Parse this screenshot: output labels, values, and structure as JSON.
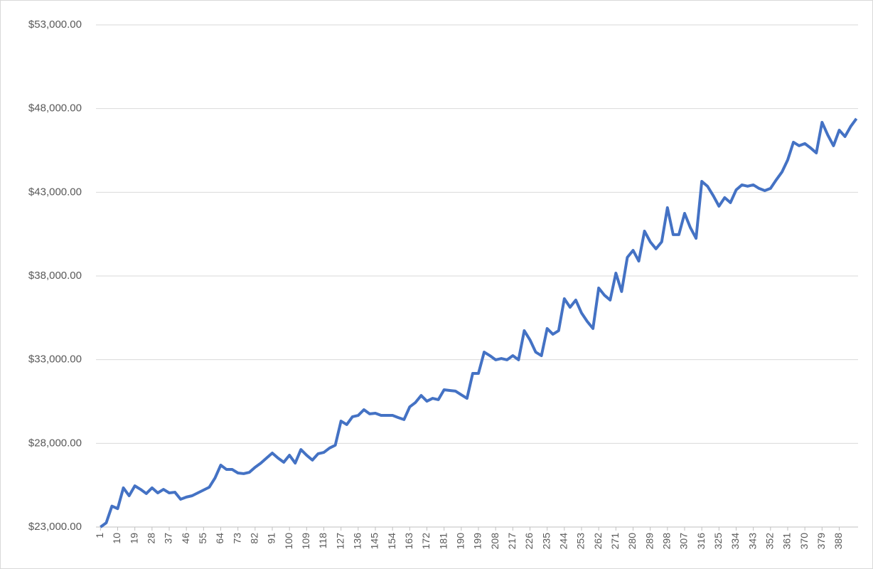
{
  "chart_data": {
    "type": "line",
    "x": [
      1,
      4,
      7,
      10,
      13,
      16,
      19,
      22,
      25,
      28,
      31,
      34,
      37,
      40,
      43,
      46,
      49,
      52,
      55,
      58,
      61,
      64,
      67,
      70,
      73,
      76,
      79,
      82,
      85,
      88,
      91,
      94,
      97,
      100,
      103,
      106,
      109,
      112,
      115,
      118,
      121,
      124,
      127,
      130,
      133,
      136,
      139,
      142,
      145,
      148,
      151,
      154,
      157,
      160,
      163,
      166,
      169,
      172,
      175,
      178,
      181,
      184,
      187,
      190,
      193,
      196,
      199,
      202,
      205,
      208,
      211,
      214,
      217,
      220,
      223,
      226,
      229,
      232,
      235,
      238,
      241,
      244,
      247,
      250,
      253,
      256,
      259,
      262,
      265,
      268,
      271,
      274,
      277,
      280,
      283,
      286,
      289,
      292,
      295,
      298,
      301,
      304,
      307,
      310,
      313,
      316,
      319,
      322,
      325,
      328,
      331,
      334,
      337,
      340,
      343,
      346,
      349,
      352,
      355,
      358,
      361,
      364,
      367,
      370,
      373,
      376,
      379,
      382,
      385,
      388,
      391,
      394,
      397
    ],
    "series": [
      {
        "color": "#4472c4",
        "values": [
          23000,
          23250,
          24250,
          24100,
          25340,
          24870,
          25460,
          25250,
          25000,
          25340,
          25040,
          25250,
          25040,
          25080,
          24660,
          24790,
          24870,
          25040,
          25210,
          25380,
          25930,
          26700,
          26440,
          26440,
          26230,
          26190,
          26270,
          26570,
          26820,
          27120,
          27420,
          27120,
          26870,
          27290,
          26820,
          27630,
          27290,
          27000,
          27380,
          27460,
          27720,
          27890,
          29330,
          29120,
          29590,
          29670,
          30010,
          29760,
          29800,
          29670,
          29670,
          29670,
          29540,
          29420,
          30180,
          30440,
          30860,
          30520,
          30690,
          30610,
          31200,
          31160,
          31120,
          30900,
          30690,
          32180,
          32180,
          33450,
          33240,
          32990,
          33070,
          32990,
          33240,
          32990,
          34730,
          34180,
          33450,
          33240,
          34860,
          34520,
          34730,
          36640,
          36130,
          36560,
          35790,
          35280,
          34860,
          37280,
          36850,
          36560,
          38170,
          37070,
          39110,
          39530,
          38890,
          40680,
          40040,
          39620,
          40040,
          42080,
          40470,
          40470,
          41740,
          40890,
          40250,
          43650,
          43360,
          42800,
          42170,
          42680,
          42380,
          43140,
          43440,
          43360,
          43440,
          43230,
          43100,
          43230,
          43740,
          44210,
          44930,
          45990,
          45780,
          45910,
          45650,
          45350,
          47180,
          46420,
          45780,
          46710,
          46330,
          46930,
          47400
        ]
      }
    ],
    "xlim": [
      0.5,
      397.5
    ],
    "xticks": [
      1,
      10,
      19,
      28,
      37,
      46,
      55,
      64,
      73,
      82,
      91,
      100,
      109,
      118,
      127,
      136,
      145,
      154,
      163,
      172,
      181,
      190,
      199,
      208,
      217,
      226,
      235,
      244,
      253,
      262,
      271,
      280,
      289,
      298,
      307,
      316,
      325,
      334,
      343,
      352,
      361,
      370,
      379,
      388
    ],
    "ylim": [
      23000,
      53000
    ],
    "yticks": [
      {
        "value": 23000,
        "label": "$23,000.00"
      },
      {
        "value": 28000,
        "label": "$28,000.00"
      },
      {
        "value": 33000,
        "label": "$33,000.00"
      },
      {
        "value": 38000,
        "label": "$38,000.00"
      },
      {
        "value": 43000,
        "label": "$43,000.00"
      },
      {
        "value": 48000,
        "label": "$48,000.00"
      },
      {
        "value": 53000,
        "label": "$53,000.00"
      }
    ],
    "grid": true
  }
}
